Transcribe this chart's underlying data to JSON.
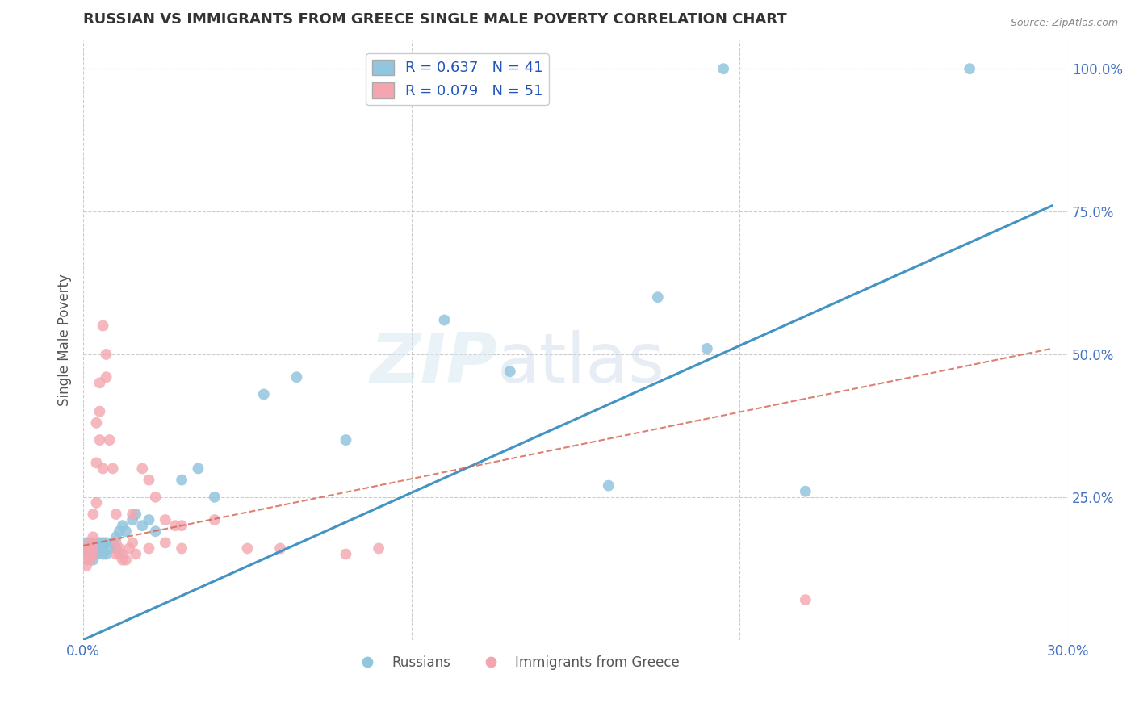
{
  "title": "RUSSIAN VS IMMIGRANTS FROM GREECE SINGLE MALE POVERTY CORRELATION CHART",
  "source": "Source: ZipAtlas.com",
  "ylabel": "Single Male Poverty",
  "watermark": "ZIPatlas",
  "blue_color": "#92c5de",
  "pink_dot_color": "#f4a6b0",
  "blue_line_color": "#4393c3",
  "pink_line_color": "#d6604d",
  "grid_color": "#cccccc",
  "title_color": "#333333",
  "axis_label_color": "#555555",
  "tick_color": "#4472c4",
  "russians_x": [
    0.001,
    0.001,
    0.002,
    0.002,
    0.003,
    0.003,
    0.004,
    0.004,
    0.005,
    0.005,
    0.006,
    0.006,
    0.006,
    0.007,
    0.007,
    0.008,
    0.009,
    0.01,
    0.01,
    0.011,
    0.012,
    0.013,
    0.015,
    0.016,
    0.018,
    0.02,
    0.022,
    0.03,
    0.035,
    0.04,
    0.055,
    0.065,
    0.08,
    0.11,
    0.13,
    0.16,
    0.175,
    0.19,
    0.22,
    0.195,
    0.27
  ],
  "russians_y": [
    0.17,
    0.15,
    0.16,
    0.15,
    0.17,
    0.14,
    0.16,
    0.15,
    0.17,
    0.16,
    0.17,
    0.15,
    0.16,
    0.17,
    0.15,
    0.16,
    0.17,
    0.16,
    0.18,
    0.19,
    0.2,
    0.19,
    0.21,
    0.22,
    0.2,
    0.21,
    0.19,
    0.28,
    0.3,
    0.25,
    0.43,
    0.46,
    0.35,
    0.56,
    0.47,
    0.27,
    0.6,
    0.51,
    0.26,
    1.0,
    1.0
  ],
  "greece_x": [
    0.001,
    0.001,
    0.001,
    0.001,
    0.002,
    0.002,
    0.002,
    0.002,
    0.003,
    0.003,
    0.003,
    0.003,
    0.004,
    0.004,
    0.004,
    0.005,
    0.005,
    0.005,
    0.006,
    0.006,
    0.007,
    0.007,
    0.008,
    0.009,
    0.01,
    0.01,
    0.011,
    0.012,
    0.015,
    0.018,
    0.02,
    0.022,
    0.025,
    0.028,
    0.03,
    0.04,
    0.05,
    0.06,
    0.08,
    0.09,
    0.01,
    0.011,
    0.012,
    0.013,
    0.014,
    0.015,
    0.016,
    0.02,
    0.025,
    0.03,
    0.22
  ],
  "greece_y": [
    0.15,
    0.14,
    0.16,
    0.13,
    0.15,
    0.16,
    0.14,
    0.17,
    0.15,
    0.16,
    0.18,
    0.22,
    0.24,
    0.31,
    0.38,
    0.35,
    0.4,
    0.45,
    0.3,
    0.55,
    0.46,
    0.5,
    0.35,
    0.3,
    0.15,
    0.22,
    0.15,
    0.14,
    0.22,
    0.3,
    0.28,
    0.25,
    0.21,
    0.2,
    0.2,
    0.21,
    0.16,
    0.16,
    0.15,
    0.16,
    0.17,
    0.16,
    0.15,
    0.14,
    0.16,
    0.17,
    0.15,
    0.16,
    0.17,
    0.16,
    0.07
  ],
  "xmin": 0.0,
  "xmax": 0.3,
  "ymin": 0.0,
  "ymax": 1.05,
  "blue_line_x": [
    0.0,
    0.295
  ],
  "blue_line_y": [
    0.0,
    0.76
  ],
  "pink_line_x": [
    0.0,
    0.295
  ],
  "pink_line_y": [
    0.165,
    0.51
  ]
}
